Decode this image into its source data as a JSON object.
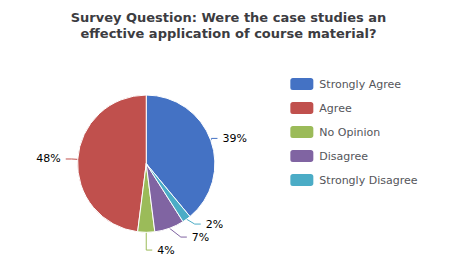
{
  "chart_data": {
    "type": "pie",
    "title": "Survey Question: Were the case studies an\neffective application of course material?",
    "categories": [
      "Strongly Agree",
      "Agree",
      "No Opinion",
      "Disagree",
      "Strongly Disagree"
    ],
    "values": [
      39,
      48,
      4,
      7,
      2
    ],
    "value_labels": [
      "39%",
      "48%",
      "4%",
      "7%",
      "2%"
    ],
    "colors": [
      "#4472C4",
      "#C0504D",
      "#9BBB59",
      "#8064A2",
      "#4BACC6"
    ],
    "data_labels": true,
    "legend": "right"
  }
}
